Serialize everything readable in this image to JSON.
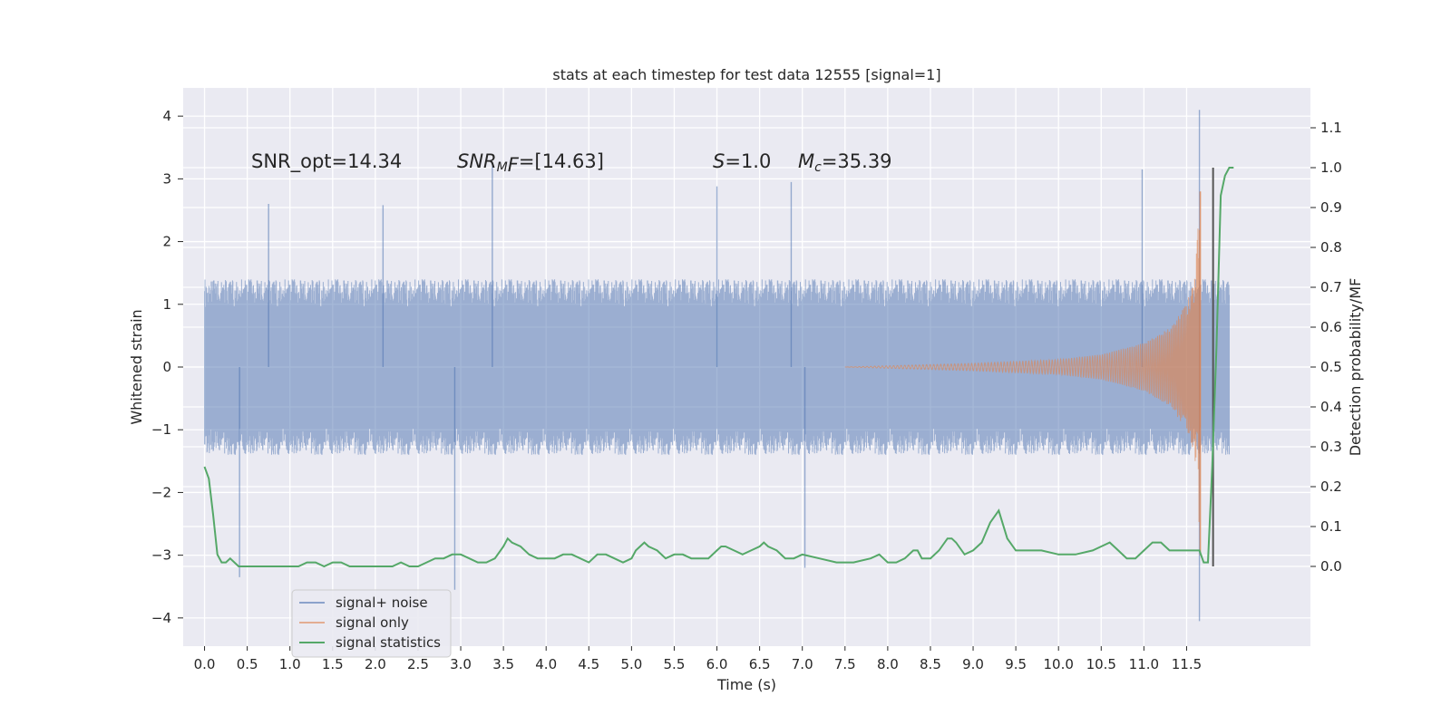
{
  "chart_data": {
    "type": "line",
    "title": "stats at each timestep for test data 12555 [signal=1]",
    "xlabel": "Time (s)",
    "ylabel": "Whitened strain",
    "y2label": "Detection probability/MF",
    "xlim": [
      -0.25,
      12.95
    ],
    "ylim": [
      -4.45,
      4.45
    ],
    "y2lim": [
      -0.2,
      1.2
    ],
    "x_ticks": [
      0.0,
      0.5,
      1.0,
      1.5,
      2.0,
      2.5,
      3.0,
      3.5,
      4.0,
      4.5,
      5.0,
      5.5,
      6.0,
      6.5,
      7.0,
      7.5,
      8.0,
      8.5,
      9.0,
      9.5,
      10.0,
      10.5,
      11.0,
      11.5
    ],
    "x_tick_labels": [
      "0.0",
      "0.5",
      "1.0",
      "1.5",
      "2.0",
      "2.5",
      "3.0",
      "3.5",
      "4.0",
      "4.5",
      "5.0",
      "5.5",
      "6.0",
      "6.5",
      "7.0",
      "7.5",
      "8.0",
      "8.5",
      "9.0",
      "9.5",
      "10.0",
      "10.5",
      "11.0",
      "11.5"
    ],
    "y_ticks": [
      -4,
      -3,
      -2,
      -1,
      0,
      1,
      2,
      3,
      4
    ],
    "y_tick_labels": [
      "−4",
      "−3",
      "−2",
      "−1",
      "0",
      "1",
      "2",
      "3",
      "4"
    ],
    "y2_ticks": [
      0.0,
      0.1,
      0.2,
      0.3,
      0.4,
      0.5,
      0.6,
      0.7,
      0.8,
      0.9,
      1.0,
      1.1
    ],
    "y2_tick_labels": [
      "0.0",
      "0.1",
      "0.2",
      "0.3",
      "0.4",
      "0.5",
      "0.6",
      "0.7",
      "0.8",
      "0.9",
      "1.0",
      "1.1"
    ],
    "grid": true,
    "legend_position": "lower-left",
    "annotations": [
      "SNR_opt=14.34",
      "SNR_MF=[14.63]",
      "S=1.0",
      "M_c=35.39"
    ],
    "series": [
      {
        "name": "signal+ noise",
        "color": "#4c72b0",
        "axis": "left",
        "description_range": [
          -1.8,
          1.8
        ],
        "peaks": [
          {
            "x": 0.75,
            "y": 2.6
          },
          {
            "x": 2.09,
            "y": 2.58
          },
          {
            "x": 3.37,
            "y": 3.2
          },
          {
            "x": 6.0,
            "y": 2.88
          },
          {
            "x": 6.87,
            "y": 2.95
          },
          {
            "x": 10.98,
            "y": 3.15
          },
          {
            "x": 11.65,
            "y": 4.1
          },
          {
            "x": 0.41,
            "y": -3.35
          },
          {
            "x": 2.93,
            "y": -3.55
          },
          {
            "x": 7.03,
            "y": -3.2
          },
          {
            "x": 11.65,
            "y": -4.05
          }
        ]
      },
      {
        "name": "signal only",
        "color": "#dd8452",
        "axis": "left",
        "envelope": [
          {
            "x": 7.5,
            "y": 0.0
          },
          {
            "x": 9.0,
            "y": 0.06
          },
          {
            "x": 10.0,
            "y": 0.12
          },
          {
            "x": 10.5,
            "y": 0.2
          },
          {
            "x": 11.0,
            "y": 0.38
          },
          {
            "x": 11.3,
            "y": 0.62
          },
          {
            "x": 11.5,
            "y": 1.0
          },
          {
            "x": 11.6,
            "y": 1.5
          },
          {
            "x": 11.66,
            "y": 2.8
          }
        ]
      },
      {
        "name": "signal statistics",
        "color": "#55a868",
        "axis": "right",
        "x": [
          0.0,
          0.05,
          0.1,
          0.15,
          0.2,
          0.25,
          0.3,
          0.35,
          0.4,
          0.45,
          0.5,
          0.6,
          0.7,
          0.8,
          0.9,
          1.0,
          1.1,
          1.2,
          1.25,
          1.3,
          1.4,
          1.5,
          1.6,
          1.7,
          1.8,
          1.9,
          2.0,
          2.1,
          2.2,
          2.3,
          2.4,
          2.5,
          2.6,
          2.7,
          2.8,
          2.9,
          3.0,
          3.1,
          3.2,
          3.3,
          3.4,
          3.5,
          3.55,
          3.6,
          3.7,
          3.8,
          3.9,
          4.0,
          4.1,
          4.2,
          4.3,
          4.4,
          4.5,
          4.6,
          4.7,
          4.8,
          4.9,
          5.0,
          5.05,
          5.1,
          5.15,
          5.2,
          5.3,
          5.4,
          5.5,
          5.6,
          5.7,
          5.8,
          5.9,
          6.0,
          6.05,
          6.1,
          6.2,
          6.3,
          6.4,
          6.5,
          6.55,
          6.6,
          6.7,
          6.8,
          6.9,
          7.0,
          7.2,
          7.4,
          7.6,
          7.8,
          7.9,
          8.0,
          8.1,
          8.2,
          8.3,
          8.35,
          8.4,
          8.5,
          8.6,
          8.7,
          8.75,
          8.8,
          8.9,
          9.0,
          9.1,
          9.2,
          9.3,
          9.4,
          9.5,
          9.6,
          9.7,
          9.8,
          10.0,
          10.2,
          10.4,
          10.5,
          10.6,
          10.7,
          10.8,
          10.9,
          11.0,
          11.1,
          11.2,
          11.3,
          11.4,
          11.5,
          11.6,
          11.65,
          11.7,
          11.75,
          11.8,
          11.85,
          11.9,
          11.95,
          12.0,
          12.05
        ],
        "values": [
          0.25,
          0.22,
          0.13,
          0.03,
          0.01,
          0.01,
          0.02,
          0.01,
          0.0,
          0.0,
          0.0,
          0.0,
          0.0,
          0.0,
          0.0,
          0.0,
          0.0,
          0.01,
          0.01,
          0.01,
          0.0,
          0.01,
          0.01,
          0.0,
          0.0,
          0.0,
          0.0,
          0.0,
          0.0,
          0.01,
          0.0,
          0.0,
          0.01,
          0.02,
          0.02,
          0.03,
          0.03,
          0.02,
          0.01,
          0.01,
          0.02,
          0.05,
          0.07,
          0.06,
          0.05,
          0.03,
          0.02,
          0.02,
          0.02,
          0.03,
          0.03,
          0.02,
          0.01,
          0.03,
          0.03,
          0.02,
          0.01,
          0.02,
          0.04,
          0.05,
          0.06,
          0.05,
          0.04,
          0.02,
          0.03,
          0.03,
          0.02,
          0.02,
          0.02,
          0.04,
          0.05,
          0.05,
          0.04,
          0.03,
          0.04,
          0.05,
          0.06,
          0.05,
          0.04,
          0.02,
          0.02,
          0.03,
          0.02,
          0.01,
          0.01,
          0.02,
          0.03,
          0.01,
          0.01,
          0.02,
          0.04,
          0.04,
          0.02,
          0.02,
          0.04,
          0.07,
          0.07,
          0.06,
          0.03,
          0.04,
          0.06,
          0.11,
          0.14,
          0.07,
          0.04,
          0.04,
          0.04,
          0.04,
          0.03,
          0.03,
          0.04,
          0.05,
          0.06,
          0.04,
          0.02,
          0.02,
          0.04,
          0.06,
          0.06,
          0.04,
          0.04,
          0.04,
          0.04,
          0.04,
          0.01,
          0.01,
          0.25,
          0.55,
          0.93,
          0.98,
          1.0,
          1.0
        ]
      }
    ],
    "vertical_marker": {
      "x": 11.81,
      "y_top": 1.0,
      "y_bottom": 0.0,
      "color": "#555555"
    }
  }
}
